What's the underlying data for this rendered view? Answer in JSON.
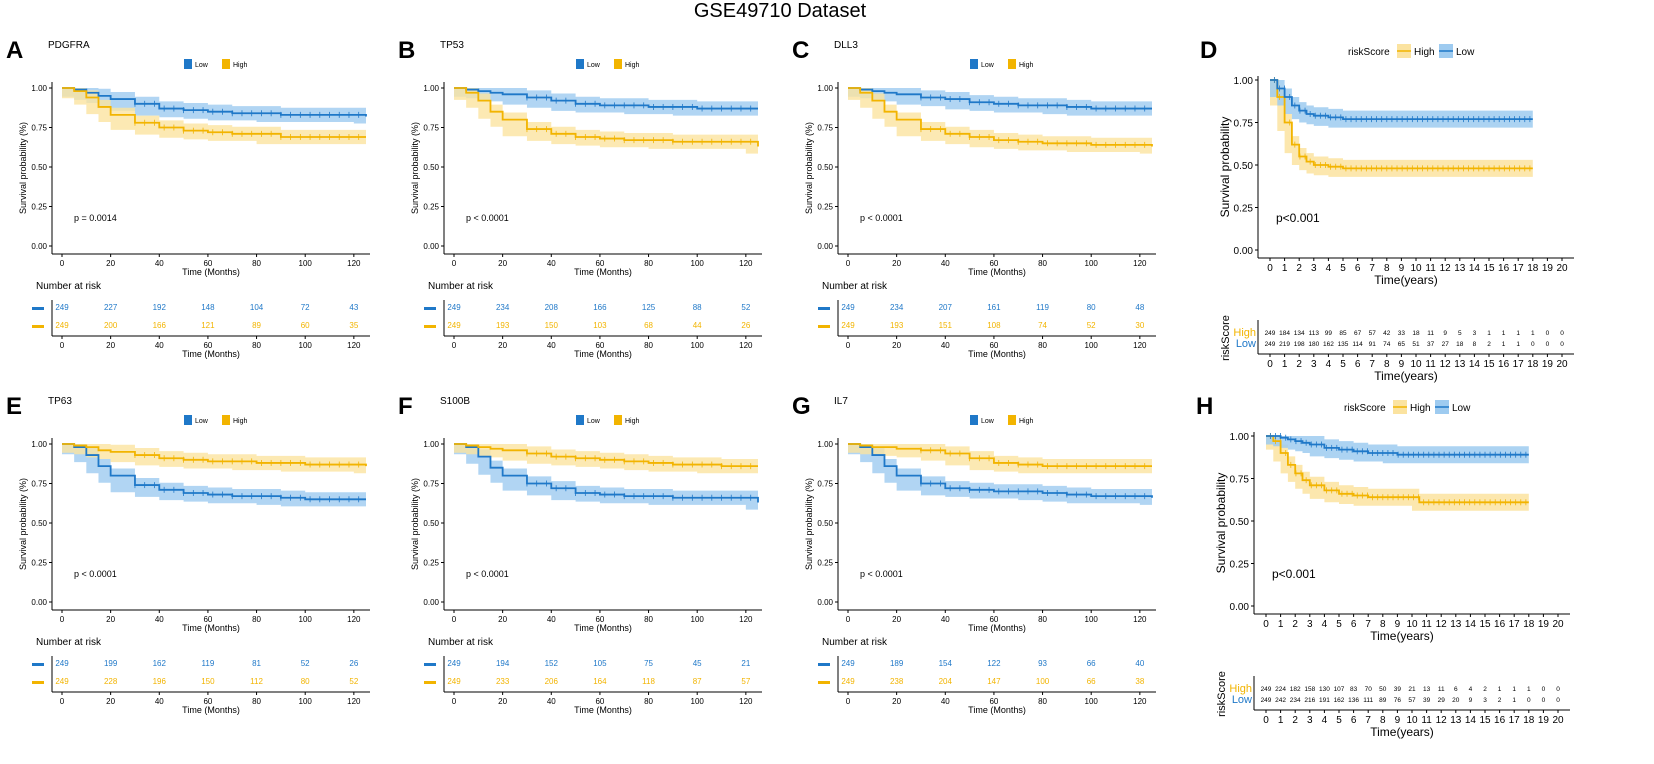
{
  "title": "GSE49710 Dataset",
  "colors": {
    "low": "#1f78c8",
    "high": "#f2b400",
    "low_band": "#9ecbf0",
    "high_band": "#fbe3a0",
    "axis": "#000000",
    "grid": "#bbbbbb"
  },
  "chart_data": [
    {
      "id": "A",
      "type": "line",
      "panel_label": "A",
      "gene": "PDGFRA",
      "legend": [
        "Low",
        "High"
      ],
      "p_text": "p = 0.0014",
      "xlabel": "Time (Months)",
      "ylabel": "Survival probability (%)",
      "xlim": [
        0,
        125
      ],
      "ylim": [
        0,
        1
      ],
      "xticks": [
        0,
        20,
        40,
        60,
        80,
        100,
        120
      ],
      "yticks": [
        "0.00",
        "0.25",
        "0.50",
        "0.75",
        "1.00"
      ],
      "series": [
        {
          "name": "Low",
          "x": [
            0,
            5,
            10,
            15,
            20,
            30,
            40,
            50,
            60,
            70,
            80,
            90,
            100,
            110,
            120,
            125
          ],
          "values": [
            1.0,
            0.99,
            0.97,
            0.95,
            0.93,
            0.9,
            0.87,
            0.86,
            0.85,
            0.84,
            0.84,
            0.83,
            0.83,
            0.83,
            0.83,
            0.82
          ]
        },
        {
          "name": "High",
          "x": [
            0,
            5,
            10,
            15,
            20,
            30,
            40,
            50,
            60,
            70,
            80,
            90,
            100,
            110,
            120,
            125
          ],
          "values": [
            1.0,
            0.98,
            0.94,
            0.88,
            0.83,
            0.78,
            0.75,
            0.73,
            0.72,
            0.71,
            0.71,
            0.69,
            0.69,
            0.69,
            0.69,
            0.69
          ]
        }
      ],
      "risk_title": "Number at risk",
      "risk": {
        "low": [
          "249",
          "227",
          "192",
          "148",
          "104",
          "72",
          "43"
        ],
        "high": [
          "249",
          "200",
          "166",
          "121",
          "89",
          "60",
          "35"
        ]
      }
    },
    {
      "id": "B",
      "type": "line",
      "panel_label": "B",
      "gene": "TP53",
      "legend": [
        "Low",
        "High"
      ],
      "p_text": "p < 0.0001",
      "xlabel": "Time (Months)",
      "ylabel": "Survival probability (%)",
      "xlim": [
        0,
        125
      ],
      "ylim": [
        0,
        1
      ],
      "xticks": [
        0,
        20,
        40,
        60,
        80,
        100,
        120
      ],
      "yticks": [
        "0.00",
        "0.25",
        "0.50",
        "0.75",
        "1.00"
      ],
      "series": [
        {
          "name": "Low",
          "x": [
            0,
            5,
            10,
            15,
            20,
            30,
            40,
            50,
            60,
            70,
            80,
            90,
            100,
            110,
            120,
            125
          ],
          "values": [
            1.0,
            0.99,
            0.98,
            0.97,
            0.96,
            0.94,
            0.92,
            0.9,
            0.89,
            0.89,
            0.88,
            0.88,
            0.87,
            0.87,
            0.87,
            0.87
          ]
        },
        {
          "name": "High",
          "x": [
            0,
            5,
            10,
            15,
            20,
            30,
            40,
            50,
            60,
            70,
            80,
            90,
            100,
            110,
            120,
            125
          ],
          "values": [
            1.0,
            0.97,
            0.92,
            0.85,
            0.8,
            0.74,
            0.71,
            0.69,
            0.68,
            0.67,
            0.67,
            0.66,
            0.66,
            0.66,
            0.66,
            0.63
          ]
        }
      ],
      "risk_title": "Number at risk",
      "risk": {
        "low": [
          "249",
          "234",
          "208",
          "166",
          "125",
          "88",
          "52"
        ],
        "high": [
          "249",
          "193",
          "150",
          "103",
          "68",
          "44",
          "26"
        ]
      }
    },
    {
      "id": "C",
      "type": "line",
      "panel_label": "C",
      "gene": "DLL3",
      "legend": [
        "Low",
        "High"
      ],
      "p_text": "p < 0.0001",
      "xlabel": "Time (Months)",
      "ylabel": "Survival probability (%)",
      "xlim": [
        0,
        125
      ],
      "ylim": [
        0,
        1
      ],
      "xticks": [
        0,
        20,
        40,
        60,
        80,
        100,
        120
      ],
      "yticks": [
        "0.00",
        "0.25",
        "0.50",
        "0.75",
        "1.00"
      ],
      "series": [
        {
          "name": "Low",
          "x": [
            0,
            5,
            10,
            15,
            20,
            30,
            40,
            50,
            60,
            70,
            80,
            90,
            100,
            110,
            120,
            125
          ],
          "values": [
            1.0,
            0.99,
            0.98,
            0.97,
            0.96,
            0.94,
            0.93,
            0.91,
            0.9,
            0.89,
            0.89,
            0.88,
            0.87,
            0.87,
            0.87,
            0.87
          ]
        },
        {
          "name": "High",
          "x": [
            0,
            5,
            10,
            15,
            20,
            30,
            40,
            50,
            60,
            70,
            80,
            90,
            100,
            110,
            120,
            125
          ],
          "values": [
            1.0,
            0.97,
            0.92,
            0.85,
            0.8,
            0.74,
            0.71,
            0.69,
            0.67,
            0.66,
            0.65,
            0.65,
            0.64,
            0.64,
            0.64,
            0.63
          ]
        }
      ],
      "risk_title": "Number at risk",
      "risk": {
        "low": [
          "249",
          "234",
          "207",
          "161",
          "119",
          "80",
          "48"
        ],
        "high": [
          "249",
          "193",
          "151",
          "108",
          "74",
          "52",
          "30"
        ]
      }
    },
    {
      "id": "E",
      "type": "line",
      "panel_label": "E",
      "gene": "TP63",
      "legend": [
        "Low",
        "High"
      ],
      "p_text": "p < 0.0001",
      "xlabel": "Time (Months)",
      "ylabel": "Survival probability (%)",
      "xlim": [
        0,
        125
      ],
      "ylim": [
        0,
        1
      ],
      "xticks": [
        0,
        20,
        40,
        60,
        80,
        100,
        120
      ],
      "yticks": [
        "0.00",
        "0.25",
        "0.50",
        "0.75",
        "1.00"
      ],
      "series": [
        {
          "name": "Low",
          "x": [
            0,
            5,
            10,
            15,
            20,
            30,
            40,
            50,
            60,
            70,
            80,
            90,
            100,
            110,
            120,
            125
          ],
          "values": [
            1.0,
            0.98,
            0.93,
            0.86,
            0.8,
            0.74,
            0.71,
            0.69,
            0.68,
            0.67,
            0.67,
            0.66,
            0.65,
            0.65,
            0.65,
            0.65
          ]
        },
        {
          "name": "High",
          "x": [
            0,
            5,
            10,
            15,
            20,
            30,
            40,
            50,
            60,
            70,
            80,
            90,
            100,
            110,
            120,
            125
          ],
          "values": [
            1.0,
            0.99,
            0.98,
            0.96,
            0.95,
            0.93,
            0.91,
            0.9,
            0.89,
            0.89,
            0.88,
            0.88,
            0.87,
            0.87,
            0.87,
            0.86
          ]
        }
      ],
      "risk_title": "Number at risk",
      "risk": {
        "low": [
          "249",
          "199",
          "162",
          "119",
          "81",
          "52",
          "26"
        ],
        "high": [
          "249",
          "228",
          "196",
          "150",
          "112",
          "80",
          "52"
        ]
      }
    },
    {
      "id": "F",
      "type": "line",
      "panel_label": "F",
      "gene": "S100B",
      "legend": [
        "Low",
        "High"
      ],
      "p_text": "p < 0.0001",
      "xlabel": "Time (Months)",
      "ylabel": "Survival probability (%)",
      "xlim": [
        0,
        125
      ],
      "ylim": [
        0,
        1
      ],
      "xticks": [
        0,
        20,
        40,
        60,
        80,
        100,
        120
      ],
      "yticks": [
        "0.00",
        "0.25",
        "0.50",
        "0.75",
        "1.00"
      ],
      "series": [
        {
          "name": "Low",
          "x": [
            0,
            5,
            10,
            15,
            20,
            30,
            40,
            50,
            60,
            70,
            80,
            90,
            100,
            110,
            120,
            125
          ],
          "values": [
            1.0,
            0.98,
            0.92,
            0.85,
            0.8,
            0.75,
            0.72,
            0.69,
            0.68,
            0.67,
            0.67,
            0.66,
            0.66,
            0.66,
            0.66,
            0.63
          ]
        },
        {
          "name": "High",
          "x": [
            0,
            5,
            10,
            15,
            20,
            30,
            40,
            50,
            60,
            70,
            80,
            90,
            100,
            110,
            120,
            125
          ],
          "values": [
            1.0,
            0.99,
            0.98,
            0.97,
            0.96,
            0.94,
            0.92,
            0.91,
            0.9,
            0.89,
            0.88,
            0.87,
            0.87,
            0.86,
            0.86,
            0.86
          ]
        }
      ],
      "risk_title": "Number at risk",
      "risk": {
        "low": [
          "249",
          "194",
          "152",
          "105",
          "75",
          "45",
          "21"
        ],
        "high": [
          "249",
          "233",
          "206",
          "164",
          "118",
          "87",
          "57"
        ]
      }
    },
    {
      "id": "G",
      "type": "line",
      "panel_label": "G",
      "gene": "IL7",
      "legend": [
        "Low",
        "High"
      ],
      "p_text": "p < 0.0001",
      "xlabel": "Time (Months)",
      "ylabel": "Survival probability (%)",
      "xlim": [
        0,
        125
      ],
      "ylim": [
        0,
        1
      ],
      "xticks": [
        0,
        20,
        40,
        60,
        80,
        100,
        120
      ],
      "yticks": [
        "0.00",
        "0.25",
        "0.50",
        "0.75",
        "1.00"
      ],
      "series": [
        {
          "name": "Low",
          "x": [
            0,
            5,
            10,
            15,
            20,
            30,
            40,
            50,
            60,
            70,
            80,
            90,
            100,
            110,
            120,
            125
          ],
          "values": [
            1.0,
            0.98,
            0.93,
            0.86,
            0.8,
            0.75,
            0.72,
            0.71,
            0.7,
            0.7,
            0.69,
            0.68,
            0.67,
            0.67,
            0.67,
            0.66
          ]
        },
        {
          "name": "High",
          "x": [
            0,
            5,
            10,
            15,
            20,
            30,
            40,
            50,
            60,
            70,
            80,
            90,
            100,
            110,
            120,
            125
          ],
          "values": [
            1.0,
            0.99,
            0.98,
            0.98,
            0.97,
            0.96,
            0.94,
            0.91,
            0.88,
            0.87,
            0.86,
            0.86,
            0.86,
            0.86,
            0.86,
            0.86
          ]
        }
      ],
      "risk_title": "Number at risk",
      "risk": {
        "low": [
          "249",
          "189",
          "154",
          "122",
          "93",
          "66",
          "40"
        ],
        "high": [
          "249",
          "238",
          "204",
          "147",
          "100",
          "66",
          "38"
        ]
      }
    },
    {
      "id": "D",
      "type": "line",
      "panel_label": "D",
      "legend_title": "riskScore",
      "legend": [
        "High",
        "Low"
      ],
      "p_text": "p<0.001",
      "xlabel": "Time(years)",
      "ylabel": "Survival probability",
      "xlim": [
        0,
        20
      ],
      "ylim": [
        0,
        1
      ],
      "xticks": [
        0,
        1,
        2,
        3,
        4,
        5,
        6,
        7,
        8,
        9,
        10,
        11,
        12,
        13,
        14,
        15,
        16,
        17,
        18,
        19,
        20
      ],
      "yticks": [
        "0.00",
        "0.25",
        "0.50",
        "0.75",
        "1.00"
      ],
      "series": [
        {
          "name": "High",
          "x": [
            0,
            0.5,
            1,
            1.5,
            2,
            2.5,
            3,
            4,
            5,
            6,
            8,
            10,
            12,
            14,
            16,
            18
          ],
          "values": [
            1.0,
            0.9,
            0.75,
            0.62,
            0.55,
            0.52,
            0.5,
            0.49,
            0.48,
            0.48,
            0.48,
            0.48,
            0.48,
            0.48,
            0.48,
            0.48
          ]
        },
        {
          "name": "Low",
          "x": [
            0,
            0.5,
            1,
            1.5,
            2,
            2.5,
            3,
            4,
            5,
            6,
            8,
            10,
            12,
            14,
            16,
            18
          ],
          "values": [
            1.0,
            0.95,
            0.9,
            0.85,
            0.82,
            0.8,
            0.79,
            0.78,
            0.77,
            0.77,
            0.77,
            0.77,
            0.77,
            0.77,
            0.77,
            0.77
          ]
        }
      ],
      "risk_ylabel": "riskScore",
      "risk_xlabel": "Time(years)",
      "risk_labels": [
        "High",
        "Low"
      ],
      "risk": {
        "high": [
          "249",
          "184",
          "134",
          "113",
          "99",
          "85",
          "67",
          "57",
          "42",
          "33",
          "18",
          "11",
          "9",
          "5",
          "3",
          "1",
          "1",
          "1",
          "1",
          "0",
          "0"
        ],
        "low": [
          "249",
          "219",
          "198",
          "180",
          "162",
          "135",
          "114",
          "91",
          "74",
          "65",
          "51",
          "37",
          "27",
          "18",
          "8",
          "2",
          "1",
          "1",
          "0",
          "0",
          "0"
        ]
      }
    },
    {
      "id": "H",
      "type": "line",
      "panel_label": "H",
      "legend_title": "riskScore",
      "legend": [
        "High",
        "Low"
      ],
      "p_text": "p<0.001",
      "xlabel": "Time(years)",
      "ylabel": "Survival probability",
      "xlim": [
        0,
        20
      ],
      "ylim": [
        0,
        1
      ],
      "xticks": [
        0,
        1,
        2,
        3,
        4,
        5,
        6,
        7,
        8,
        9,
        10,
        11,
        12,
        13,
        14,
        15,
        16,
        17,
        18,
        19,
        20
      ],
      "yticks": [
        "0.00",
        "0.25",
        "0.50",
        "0.75",
        "1.00"
      ],
      "series": [
        {
          "name": "High",
          "x": [
            0,
            0.5,
            1,
            1.5,
            2,
            2.5,
            3,
            4,
            5,
            6,
            7,
            8,
            9,
            10,
            10.5,
            12,
            14,
            16,
            18
          ],
          "values": [
            1.0,
            0.97,
            0.9,
            0.83,
            0.78,
            0.74,
            0.71,
            0.68,
            0.66,
            0.65,
            0.64,
            0.64,
            0.64,
            0.64,
            0.61,
            0.61,
            0.61,
            0.61,
            0.61
          ]
        },
        {
          "name": "Low",
          "x": [
            0,
            0.5,
            1,
            1.5,
            2,
            2.5,
            3,
            4,
            5,
            6,
            7,
            8,
            9,
            10,
            12,
            14,
            16,
            18
          ],
          "values": [
            1.0,
            1.0,
            0.99,
            0.98,
            0.97,
            0.96,
            0.95,
            0.93,
            0.92,
            0.91,
            0.9,
            0.9,
            0.89,
            0.89,
            0.89,
            0.89,
            0.89,
            0.89
          ]
        }
      ],
      "risk_ylabel": "riskScore",
      "risk_xlabel": "Time(years)",
      "risk_labels": [
        "High",
        "Low"
      ],
      "risk": {
        "high": [
          "249",
          "224",
          "182",
          "158",
          "130",
          "107",
          "83",
          "70",
          "50",
          "39",
          "21",
          "13",
          "11",
          "6",
          "4",
          "2",
          "1",
          "1",
          "1",
          "0",
          "0"
        ],
        "low": [
          "249",
          "242",
          "234",
          "216",
          "191",
          "162",
          "136",
          "111",
          "89",
          "76",
          "57",
          "39",
          "29",
          "20",
          "9",
          "3",
          "2",
          "1",
          "0",
          "0",
          "0"
        ]
      }
    }
  ]
}
